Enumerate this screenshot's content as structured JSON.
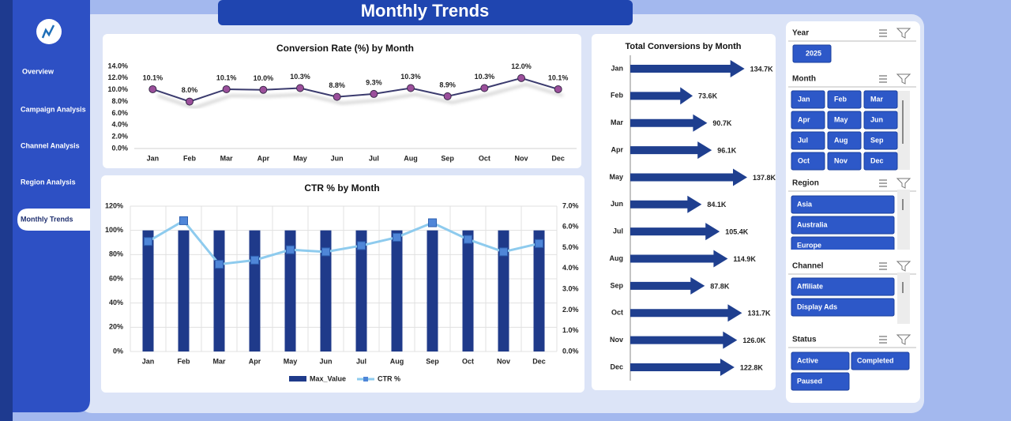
{
  "header": {
    "title": "Monthly Trends"
  },
  "sidebar": {
    "items": [
      "Overview",
      "Campaign Analysis",
      "Channel Analysis",
      "Region Analysis",
      "Monthly Trends"
    ],
    "active_index": 4
  },
  "slicers": [
    {
      "title": "Year",
      "items": [
        "2025"
      ]
    },
    {
      "title": "Month",
      "items": [
        "Jan",
        "Feb",
        "Mar",
        "Apr",
        "May",
        "Jun",
        "Jul",
        "Aug",
        "Sep",
        "Oct",
        "Nov",
        "Dec"
      ]
    },
    {
      "title": "Region",
      "items": [
        "Asia",
        "Australia",
        "Europe"
      ]
    },
    {
      "title": "Channel",
      "items": [
        "Affiliate",
        "Display Ads"
      ]
    },
    {
      "title": "Status",
      "items": [
        "Active",
        "Completed",
        "Paused"
      ]
    }
  ],
  "chart_data": [
    {
      "type": "line",
      "title": "Conversion Rate (%) by Month",
      "categories": [
        "Jan",
        "Feb",
        "Mar",
        "Apr",
        "May",
        "Jun",
        "Jul",
        "Aug",
        "Sep",
        "Oct",
        "Nov",
        "Dec"
      ],
      "values": [
        10.1,
        8.0,
        10.1,
        10.0,
        10.3,
        8.8,
        9.3,
        10.3,
        8.9,
        10.3,
        12.0,
        10.1
      ],
      "value_labels": [
        "10.1%",
        "8.0%",
        "10.1%",
        "10.0%",
        "10.3%",
        "8.8%",
        "9.3%",
        "10.3%",
        "8.9%",
        "10.3%",
        "12.0%",
        "10.1%"
      ],
      "color": "#3a3a6e",
      "marker_color": "#9b4f9b",
      "ylim": [
        0,
        14
      ],
      "yticks": [
        {
          "value": 0,
          "label": "0.0%"
        },
        {
          "value": 2,
          "label": "2.0%"
        },
        {
          "value": 4,
          "label": "4.0%"
        },
        {
          "value": 6,
          "label": "6.0%"
        },
        {
          "value": 8,
          "label": "8.0%"
        },
        {
          "value": 10,
          "label": "10.0%"
        },
        {
          "value": 12,
          "label": "12.0%"
        },
        {
          "value": 14,
          "label": "14.0%"
        }
      ],
      "grid": false
    },
    {
      "type": "combo",
      "title": "CTR % by Month",
      "categories": [
        "Jan",
        "Feb",
        "Mar",
        "Apr",
        "May",
        "Jun",
        "Jul",
        "Aug",
        "Sep",
        "Oct",
        "Nov",
        "Dec"
      ],
      "series": [
        {
          "name": "Max_Value",
          "type": "bar",
          "color": "#1f3a8a",
          "values": [
            100,
            100,
            100,
            100,
            100,
            100,
            100,
            100,
            100,
            100,
            100,
            100
          ]
        },
        {
          "name": "CTR %",
          "type": "line",
          "axis": "y2",
          "color": "#8ecbee",
          "marker_color": "#4f86d8",
          "values": [
            5.3,
            6.3,
            4.2,
            4.4,
            4.9,
            4.8,
            5.1,
            5.5,
            6.2,
            5.4,
            4.8,
            5.2
          ]
        }
      ],
      "ylim": [
        0,
        120
      ],
      "yticks": [
        {
          "value": 0,
          "label": "0%"
        },
        {
          "value": 20,
          "label": "20%"
        },
        {
          "value": 40,
          "label": "40%"
        },
        {
          "value": 60,
          "label": "60%"
        },
        {
          "value": 80,
          "label": "80%"
        },
        {
          "value": 100,
          "label": "100%"
        },
        {
          "value": 120,
          "label": "120%"
        }
      ],
      "y2lim": [
        0,
        7
      ],
      "y2ticks": [
        {
          "value": 0,
          "label": "0.0%"
        },
        {
          "value": 1,
          "label": "1.0%"
        },
        {
          "value": 2,
          "label": "2.0%"
        },
        {
          "value": 3,
          "label": "3.0%"
        },
        {
          "value": 4,
          "label": "4.0%"
        },
        {
          "value": 5,
          "label": "5.0%"
        },
        {
          "value": 6,
          "label": "6.0%"
        },
        {
          "value": 7,
          "label": "7.0%"
        }
      ],
      "grid": true,
      "legend": "bottom"
    },
    {
      "type": "arrowbar",
      "title": "Total Conversions by Month",
      "categories": [
        "Jan",
        "Feb",
        "Mar",
        "Apr",
        "May",
        "Jun",
        "Jul",
        "Aug",
        "Sep",
        "Oct",
        "Nov",
        "Dec"
      ],
      "values": [
        134.7,
        73.6,
        90.7,
        96.1,
        137.8,
        84.1,
        105.4,
        114.9,
        87.8,
        131.7,
        126.0,
        122.8
      ],
      "value_labels": [
        "134.7K",
        "73.6K",
        "90.7K",
        "96.1K",
        "137.8K",
        "84.1K",
        "105.4K",
        "114.9K",
        "87.8K",
        "131.7K",
        "126.0K",
        "122.8K"
      ],
      "color": "#1f3f8f"
    }
  ]
}
